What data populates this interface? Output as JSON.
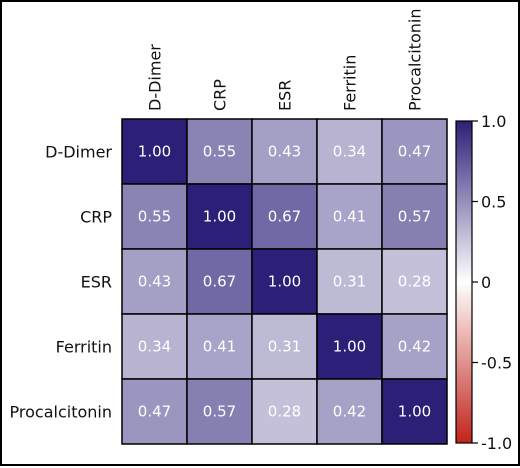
{
  "chart_data": {
    "type": "heatmap",
    "title": "",
    "xlabel": "",
    "ylabel": "",
    "x_categories": [
      "D-Dimer",
      "CRP",
      "ESR",
      "Ferritin",
      "Procalcitonin"
    ],
    "y_categories": [
      "D-Dimer",
      "CRP",
      "ESR",
      "Ferritin",
      "Procalcitonin"
    ],
    "values": [
      [
        1.0,
        0.55,
        0.43,
        0.34,
        0.47
      ],
      [
        0.55,
        1.0,
        0.67,
        0.41,
        0.57
      ],
      [
        0.43,
        0.67,
        1.0,
        0.31,
        0.28
      ],
      [
        0.34,
        0.41,
        0.31,
        1.0,
        0.42
      ],
      [
        0.47,
        0.57,
        0.28,
        0.42,
        1.0
      ]
    ],
    "value_labels": [
      [
        "1.00",
        "0.55",
        "0.43",
        "0.34",
        "0.47"
      ],
      [
        "0.55",
        "1.00",
        "0.67",
        "0.41",
        "0.57"
      ],
      [
        "0.43",
        "0.67",
        "1.00",
        "0.31",
        "0.28"
      ],
      [
        "0.34",
        "0.41",
        "0.31",
        "1.00",
        "0.42"
      ],
      [
        "0.47",
        "0.57",
        "0.28",
        "0.42",
        "1.00"
      ]
    ],
    "colorbar": {
      "range": [
        -1.0,
        1.0
      ],
      "ticks": [
        1.0,
        0.5,
        0,
        -0.5,
        -1.0
      ],
      "tick_labels": [
        "1.0",
        "0.5",
        "0",
        "-0.5",
        "-1.0"
      ],
      "colors": {
        "high": "#2b1f78",
        "mid": "#ffffff",
        "low": "#c0241a"
      }
    },
    "legend_placement": "right",
    "grid": false
  }
}
